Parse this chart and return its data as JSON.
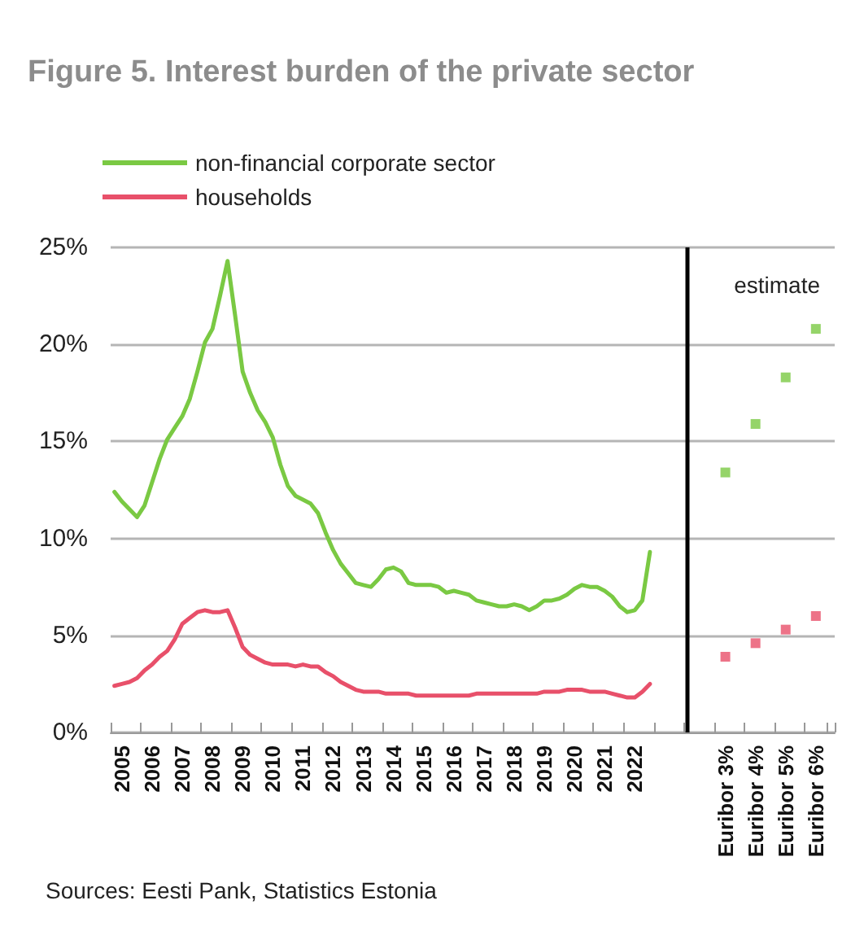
{
  "chart_data": {
    "type": "line",
    "title": "Figure 5. Interest burden of the private sector",
    "categories": [
      null,
      "2005",
      null,
      null,
      null,
      "2006",
      null,
      null,
      null,
      "2007",
      null,
      null,
      null,
      "2008",
      null,
      null,
      null,
      "2009",
      null,
      null,
      null,
      "2010",
      null,
      null,
      null,
      "2011",
      null,
      null,
      null,
      "2012",
      null,
      null,
      null,
      "2013",
      null,
      null,
      null,
      "2014",
      null,
      null,
      null,
      "2015",
      null,
      null,
      null,
      "2016",
      null,
      null,
      null,
      "2017",
      null,
      null,
      null,
      "2018",
      null,
      null,
      null,
      "2019",
      null,
      null,
      null,
      "2020",
      null,
      null,
      null,
      "2021",
      null,
      null,
      null,
      "2022",
      null,
      null,
      null,
      null,
      null,
      null,
      null,
      null,
      null,
      null,
      null,
      "Euribor 3%",
      null,
      null,
      null,
      "Euribor 4%",
      null,
      null,
      null,
      "Euribor 5%",
      null,
      null,
      null,
      "Euribor 6%",
      null,
      null
    ],
    "series": [
      {
        "name": "non-financial corporate sector",
        "color": "#7ac943",
        "values": [
          12.4,
          11.9,
          11.5,
          11.1,
          11.7,
          12.9,
          14.1,
          15.1,
          15.7,
          16.3,
          17.2,
          18.6,
          20.1,
          20.8,
          22.5,
          24.3,
          21.5,
          18.6,
          17.5,
          16.6,
          16.0,
          15.2,
          13.8,
          12.7,
          12.2,
          12.0,
          11.8,
          11.3,
          10.3,
          9.4,
          8.7,
          8.2,
          7.7,
          7.6,
          7.5,
          7.9,
          8.4,
          8.5,
          8.3,
          7.7,
          7.6,
          7.6,
          7.6,
          7.5,
          7.2,
          7.3,
          7.2,
          7.1,
          6.8,
          6.7,
          6.6,
          6.5,
          6.5,
          6.6,
          6.5,
          6.3,
          6.5,
          6.8,
          6.8,
          6.9,
          7.1,
          7.4,
          7.6,
          7.5,
          7.5,
          7.3,
          7.0,
          6.5,
          6.2,
          6.3,
          6.8,
          9.3,
          null,
          null,
          null,
          null,
          null,
          null,
          null,
          null,
          null,
          null,
          null,
          null,
          null,
          null,
          null,
          null,
          null,
          null,
          null,
          null,
          null,
          null,
          null,
          null
        ]
      },
      {
        "name": "households",
        "color": "#e8506a",
        "values": [
          2.4,
          2.5,
          2.6,
          2.8,
          3.2,
          3.5,
          3.9,
          4.2,
          4.8,
          5.6,
          5.9,
          6.2,
          6.3,
          6.2,
          6.2,
          6.3,
          5.4,
          4.4,
          4.0,
          3.8,
          3.6,
          3.5,
          3.5,
          3.5,
          3.4,
          3.5,
          3.4,
          3.4,
          3.1,
          2.9,
          2.6,
          2.4,
          2.2,
          2.1,
          2.1,
          2.1,
          2.0,
          2.0,
          2.0,
          2.0,
          1.9,
          1.9,
          1.9,
          1.9,
          1.9,
          1.9,
          1.9,
          1.9,
          2.0,
          2.0,
          2.0,
          2.0,
          2.0,
          2.0,
          2.0,
          2.0,
          2.0,
          2.1,
          2.1,
          2.1,
          2.2,
          2.2,
          2.2,
          2.1,
          2.1,
          2.1,
          2.0,
          1.9,
          1.8,
          1.8,
          2.1,
          2.5,
          null,
          null,
          null,
          null,
          null,
          null,
          null,
          null,
          null,
          null,
          null,
          null,
          null,
          null,
          null,
          null,
          null,
          null,
          null,
          null,
          null,
          null,
          null,
          null
        ]
      },
      {
        "type": "scatter",
        "marker": "square",
        "color": "#7ac943",
        "values": [
          null,
          null,
          null,
          null,
          null,
          null,
          null,
          null,
          null,
          null,
          null,
          null,
          null,
          null,
          null,
          null,
          null,
          null,
          null,
          null,
          null,
          null,
          null,
          null,
          null,
          null,
          null,
          null,
          null,
          null,
          null,
          null,
          null,
          null,
          null,
          null,
          null,
          null,
          null,
          null,
          null,
          null,
          null,
          null,
          null,
          null,
          null,
          null,
          null,
          null,
          null,
          null,
          null,
          null,
          null,
          null,
          null,
          null,
          null,
          null,
          null,
          null,
          null,
          null,
          null,
          null,
          null,
          null,
          null,
          null,
          null,
          null,
          null,
          null,
          null,
          null,
          null,
          null,
          null,
          null,
          null,
          13.4,
          null,
          null,
          null,
          15.9,
          null,
          null,
          null,
          18.3,
          null,
          null,
          null,
          20.8,
          null,
          null
        ]
      },
      {
        "type": "scatter",
        "marker": "square",
        "color": "#e8506a",
        "values": [
          null,
          null,
          null,
          null,
          null,
          null,
          null,
          null,
          null,
          null,
          null,
          null,
          null,
          null,
          null,
          null,
          null,
          null,
          null,
          null,
          null,
          null,
          null,
          null,
          null,
          null,
          null,
          null,
          null,
          null,
          null,
          null,
          null,
          null,
          null,
          null,
          null,
          null,
          null,
          null,
          null,
          null,
          null,
          null,
          null,
          null,
          null,
          null,
          null,
          null,
          null,
          null,
          null,
          null,
          null,
          null,
          null,
          null,
          null,
          null,
          null,
          null,
          null,
          null,
          null,
          null,
          null,
          null,
          null,
          null,
          null,
          null,
          null,
          null,
          null,
          null,
          null,
          null,
          null,
          null,
          null,
          3.9,
          null,
          null,
          null,
          4.6,
          null,
          null,
          null,
          5.3,
          null,
          null,
          null,
          6.0,
          null,
          null
        ]
      }
    ],
    "ylim": [
      0,
      25
    ],
    "yticks": [
      {
        "value": 0,
        "label": "0%"
      },
      {
        "value": 5,
        "label": "5%"
      },
      {
        "value": 10,
        "label": "10%"
      },
      {
        "value": 15,
        "label": "15%"
      },
      {
        "value": 20,
        "label": "20%"
      },
      {
        "value": 25,
        "label": "25%"
      }
    ],
    "grid": "y",
    "legend": "top left",
    "marker": "none",
    "annotations": [
      "estimate",
      "Sources: Eesti Pank, Statistics Estonia"
    ]
  }
}
